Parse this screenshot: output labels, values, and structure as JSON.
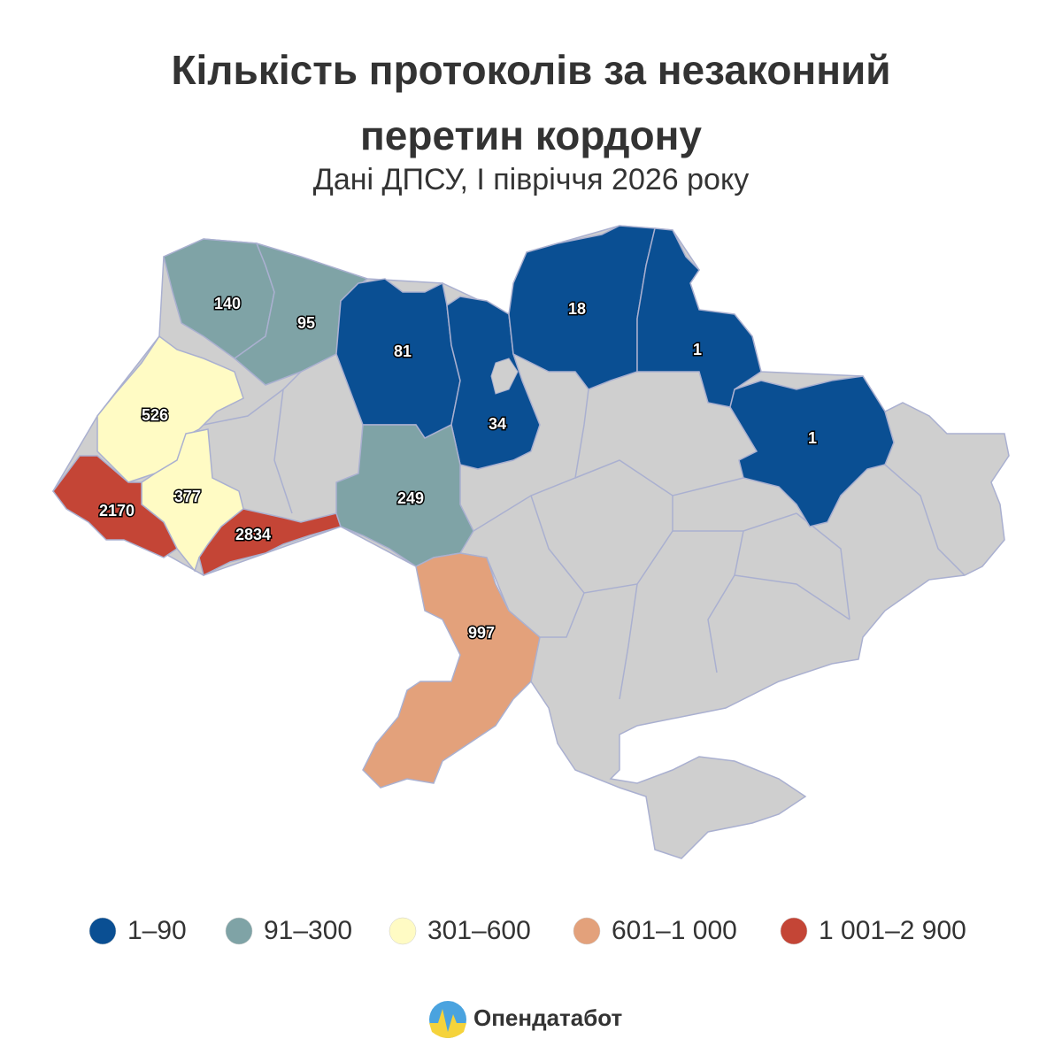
{
  "title": "Кількість протоколів за незаконний перетин кордону",
  "subtitle": "Дані ДПСУ, І півріччя 2026 року",
  "map": {
    "regions": [
      {
        "value": 140,
        "color": "#7fa3a6"
      },
      {
        "value": 95,
        "color": "#7fa3a6"
      },
      {
        "value": 81,
        "color": "#0a4f93"
      },
      {
        "value": 34,
        "color": "#0a4f93"
      },
      {
        "value": 18,
        "color": "#0a4f93"
      },
      {
        "value": 1,
        "color": "#0a4f93"
      },
      {
        "value": 1,
        "color": "#0a4f93"
      },
      {
        "value": 526,
        "color": "#fffbc4"
      },
      {
        "value": 377,
        "color": "#fffbc4"
      },
      {
        "value": 2170,
        "color": "#c44536"
      },
      {
        "value": 2834,
        "color": "#c44536"
      },
      {
        "value": 249,
        "color": "#7fa3a6"
      },
      {
        "value": 997,
        "color": "#e3a17b"
      }
    ]
  },
  "legend": [
    {
      "label": "1–90",
      "color": "#0a4f93"
    },
    {
      "label": "91–300",
      "color": "#7fa3a6"
    },
    {
      "label": "301–600",
      "color": "#fffbc4"
    },
    {
      "label": "601–1 000",
      "color": "#e3a17b"
    },
    {
      "label": "1 001–2 900",
      "color": "#c44536"
    }
  ],
  "footer": {
    "brand": "Опендатабот"
  }
}
